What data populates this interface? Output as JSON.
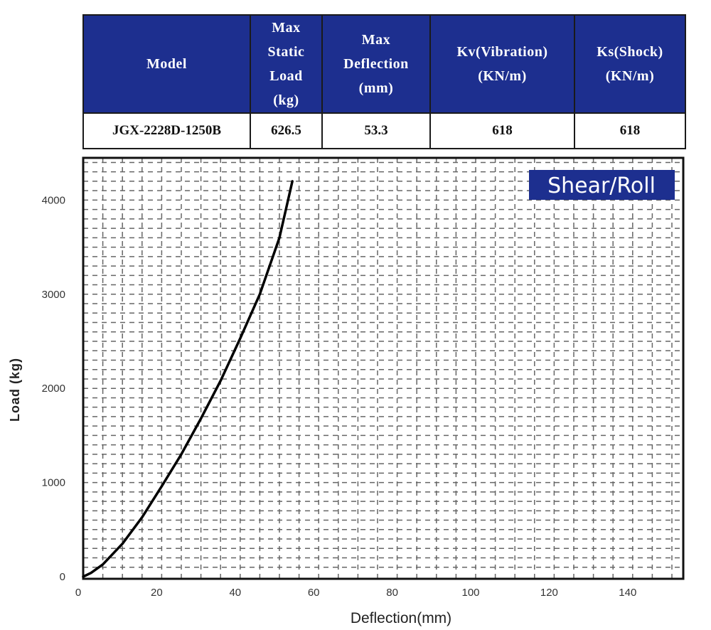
{
  "table": {
    "headers": [
      "Model",
      "Max\nStatic\nLoad\n(kg)",
      "Max\nDeflection\n(mm)",
      "Kv(Vibration)\n(KN/m)",
      "Ks(Shock)\n(KN/m)"
    ],
    "row": [
      "JGX-2228D-1250B",
      "626.5",
      "53.3",
      "618",
      "618"
    ]
  },
  "chart_data": {
    "type": "line",
    "title": "Shear/Roll",
    "xlabel": "Deflection(mm)",
    "ylabel": "Load  (kg)",
    "xlim": [
      0,
      152
    ],
    "ylim": [
      0,
      4450
    ],
    "xticks": [
      "0",
      "20",
      "40",
      "60",
      "80",
      "100",
      "120",
      "140"
    ],
    "yticks": [
      "0",
      "1000",
      "2000",
      "3000",
      "4000"
    ],
    "grid": true,
    "series": [
      {
        "x": [
          0,
          2,
          5,
          10,
          15,
          20,
          25,
          30,
          35,
          40,
          45,
          50,
          53.3
        ],
        "y": [
          0,
          40,
          130,
          350,
          630,
          960,
          1300,
          1680,
          2080,
          2530,
          3000,
          3600,
          4200
        ]
      }
    ]
  },
  "colors": {
    "header_bg": "#1d2f8f",
    "badge_bg": "#1d2f8f",
    "curve": "#000000",
    "grid": "#666666"
  }
}
